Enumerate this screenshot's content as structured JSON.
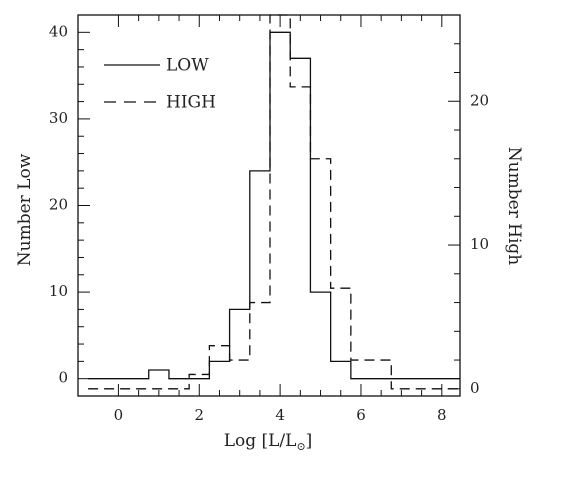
{
  "chart_data": {
    "type": "histogram",
    "xlabel": "Log [L/L",
    "xlabel_sub": "⊙",
    "xlabel_close": "]",
    "ylabel_left": "Number Low",
    "ylabel_right": "Number High",
    "xlim": [
      -1,
      8.45
    ],
    "ylim_left": [
      -2,
      42
    ],
    "ylim_right": [
      -0.5,
      26
    ],
    "x_ticks": [
      0,
      2,
      4,
      6,
      8
    ],
    "x_tick_labels": [
      "0",
      "2",
      "4",
      "6",
      "8"
    ],
    "x_minor_step": 0.5,
    "y_left_ticks": [
      0,
      10,
      20,
      30,
      40
    ],
    "y_left_tick_labels": [
      "0",
      "10",
      "20",
      "30",
      "40"
    ],
    "y_left_minor_step": 2,
    "y_right_ticks": [
      0,
      10,
      20
    ],
    "y_right_tick_labels": [
      "0",
      "10",
      "20"
    ],
    "y_right_minor_step": 2,
    "series": [
      {
        "name": "LOW",
        "axis": "left",
        "style": "solid",
        "bin_edges": [
          -0.75,
          0.75,
          1.25,
          2.25,
          2.75,
          3.25,
          3.75,
          4.25,
          4.75,
          5.25,
          5.75,
          8.45
        ],
        "counts": [
          0,
          1,
          0,
          2,
          8,
          24,
          40,
          37,
          10,
          2,
          0
        ]
      },
      {
        "name": "HIGH",
        "axis": "right",
        "style": "dashed",
        "bin_edges": [
          -0.75,
          1.75,
          2.25,
          2.75,
          3.25,
          3.75,
          4.25,
          4.75,
          5.25,
          5.75,
          6.75,
          8.45
        ],
        "counts": [
          0,
          1,
          3,
          2,
          6,
          26,
          21,
          16,
          7,
          2,
          0
        ]
      }
    ],
    "legend": {
      "placement": "top-left"
    }
  }
}
